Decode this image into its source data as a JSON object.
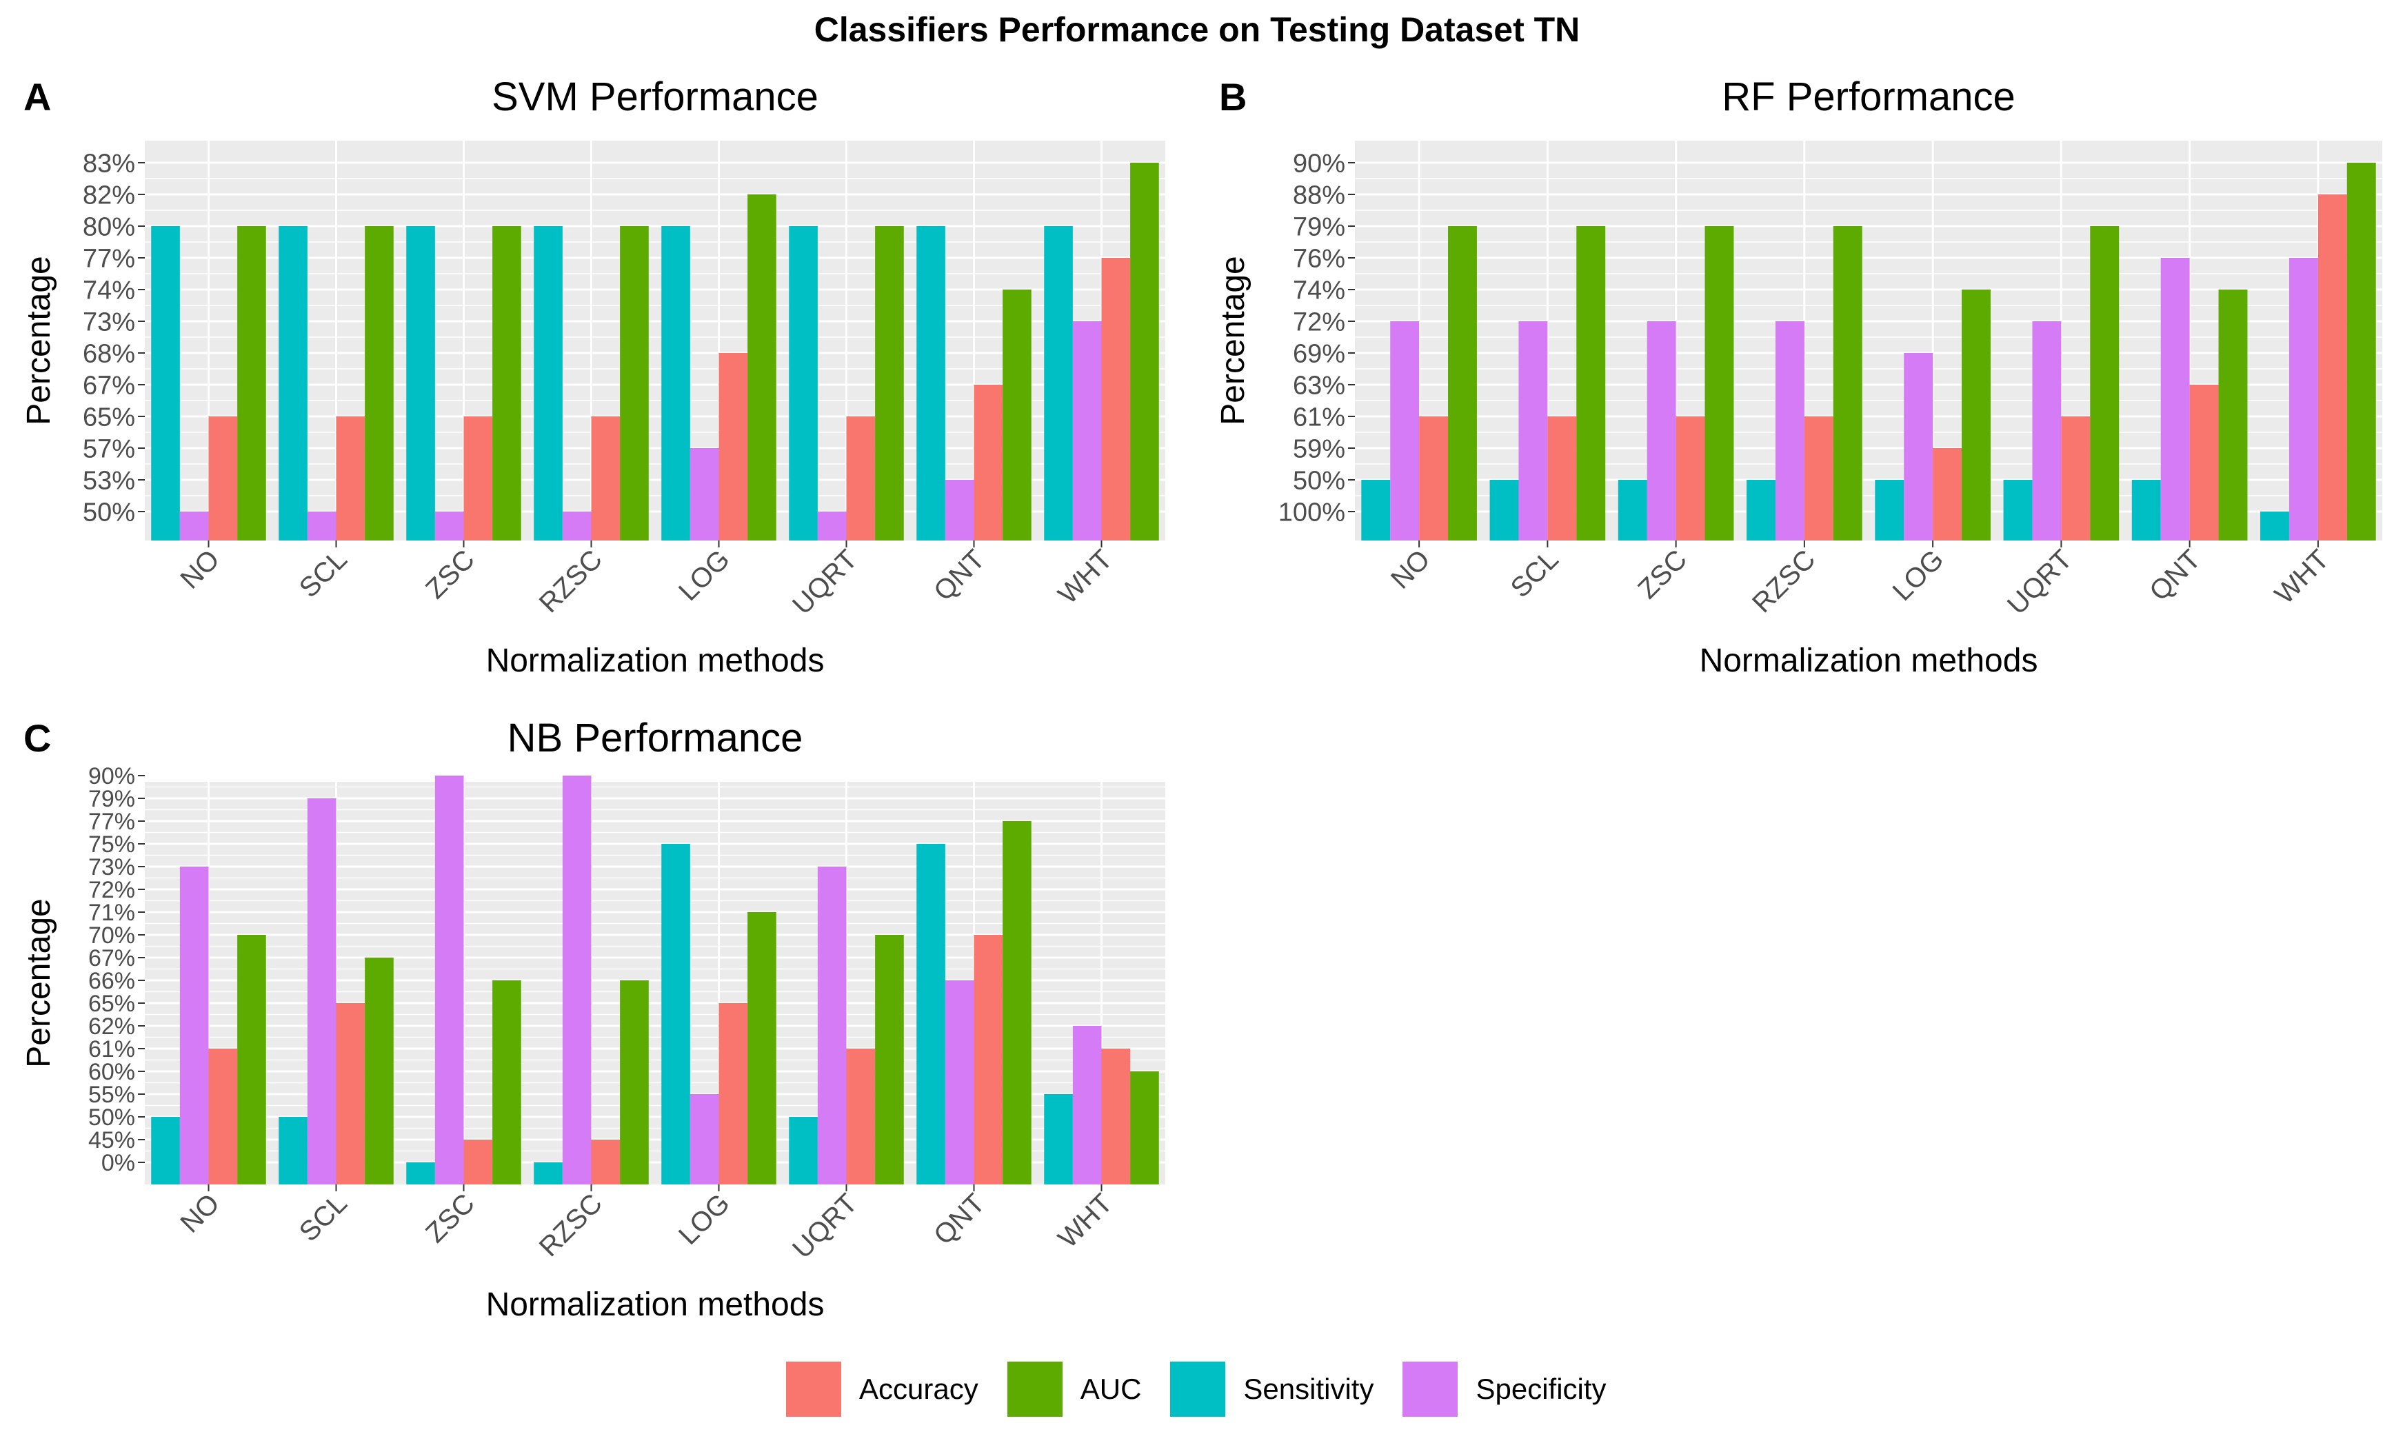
{
  "figure": {
    "title": "Classifiers Performance on Testing Dataset TN",
    "legend": [
      {
        "label": "Accuracy",
        "color": "#F8766D"
      },
      {
        "label": "AUC",
        "color": "#5DAA00"
      },
      {
        "label": "Sensitivity",
        "color": "#00BFC4"
      },
      {
        "label": "Specificity",
        "color": "#D57BF6"
      }
    ]
  },
  "chart_data": [
    {
      "panel": "A",
      "type": "bar",
      "title": "SVM Performance",
      "xlabel": "Normalization methods",
      "ylabel": "Percentage",
      "categories": [
        "NO",
        "SCL",
        "ZSC",
        "RZSC",
        "LOG",
        "UQRT",
        "QNT",
        "WHT"
      ],
      "y_ticks": [
        "50%",
        "53%",
        "57%",
        "65%",
        "67%",
        "68%",
        "73%",
        "74%",
        "77%",
        "80%",
        "82%",
        "83%"
      ],
      "series": [
        {
          "name": "Sensitivity",
          "values": [
            "80%",
            "80%",
            "80%",
            "80%",
            "80%",
            "80%",
            "80%",
            "80%"
          ]
        },
        {
          "name": "Specificity",
          "values": [
            "50%",
            "50%",
            "50%",
            "50%",
            "57%",
            "50%",
            "53%",
            "73%"
          ]
        },
        {
          "name": "Accuracy",
          "values": [
            "65%",
            "65%",
            "65%",
            "65%",
            "68%",
            "65%",
            "67%",
            "77%"
          ]
        },
        {
          "name": "AUC",
          "values": [
            "80%",
            "80%",
            "80%",
            "80%",
            "82%",
            "80%",
            "74%",
            "83%"
          ]
        }
      ]
    },
    {
      "panel": "B",
      "type": "bar",
      "title": "RF Performance",
      "xlabel": "Normalization methods",
      "ylabel": "Percentage",
      "categories": [
        "NO",
        "SCL",
        "ZSC",
        "RZSC",
        "LOG",
        "UQRT",
        "QNT",
        "WHT"
      ],
      "y_ticks": [
        "100%",
        "50%",
        "59%",
        "61%",
        "63%",
        "69%",
        "72%",
        "74%",
        "76%",
        "79%",
        "88%",
        "90%"
      ],
      "series": [
        {
          "name": "Sensitivity",
          "values": [
            "50%",
            "50%",
            "50%",
            "50%",
            "50%",
            "50%",
            "50%",
            "100%"
          ]
        },
        {
          "name": "Specificity",
          "values": [
            "72%",
            "72%",
            "72%",
            "72%",
            "69%",
            "72%",
            "76%",
            "76%"
          ]
        },
        {
          "name": "Accuracy",
          "values": [
            "61%",
            "61%",
            "61%",
            "61%",
            "59%",
            "61%",
            "63%",
            "88%"
          ]
        },
        {
          "name": "AUC",
          "values": [
            "79%",
            "79%",
            "79%",
            "79%",
            "74%",
            "79%",
            "74%",
            "90%"
          ]
        }
      ]
    },
    {
      "panel": "C",
      "type": "bar",
      "title": "NB Performance",
      "xlabel": "Normalization methods",
      "ylabel": "Percentage",
      "categories": [
        "NO",
        "SCL",
        "ZSC",
        "RZSC",
        "LOG",
        "UQRT",
        "QNT",
        "WHT"
      ],
      "y_ticks": [
        "0%",
        "45%",
        "50%",
        "55%",
        "60%",
        "61%",
        "62%",
        "65%",
        "66%",
        "67%",
        "70%",
        "71%",
        "72%",
        "73%",
        "75%",
        "77%",
        "79%",
        "90%"
      ],
      "series": [
        {
          "name": "Sensitivity",
          "values": [
            "50%",
            "50%",
            "0%",
            "0%",
            "75%",
            "50%",
            "75%",
            "55%"
          ]
        },
        {
          "name": "Specificity",
          "values": [
            "73%",
            "79%",
            "90%",
            "90%",
            "55%",
            "73%",
            "66%",
            "62%"
          ]
        },
        {
          "name": "Accuracy",
          "values": [
            "61%",
            "65%",
            "45%",
            "45%",
            "65%",
            "61%",
            "70%",
            "61%"
          ]
        },
        {
          "name": "AUC",
          "values": [
            "70%",
            "67%",
            "66%",
            "66%",
            "71%",
            "70%",
            "77%",
            "60%"
          ]
        }
      ]
    }
  ]
}
